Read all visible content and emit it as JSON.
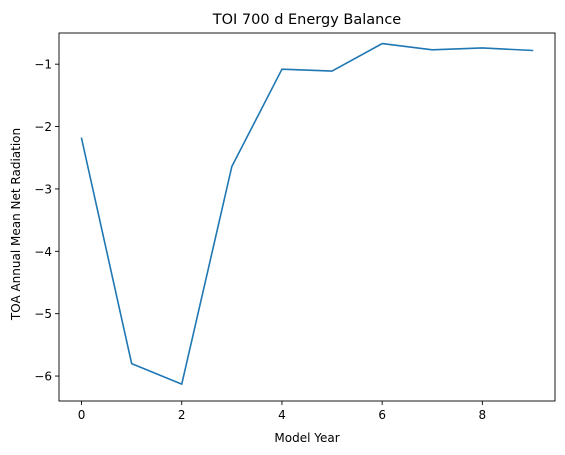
{
  "chart_data": {
    "type": "line",
    "title": "TOI 700 d Energy Balance",
    "xlabel": "Model Year",
    "ylabel": "TOA Annual Mean Net Radiation",
    "xlim": [
      -0.45,
      9.45
    ],
    "ylim": [
      -6.4,
      -0.5
    ],
    "xticks": [
      0,
      2,
      4,
      6,
      8
    ],
    "xtick_labels": [
      "0",
      "2",
      "4",
      "6",
      "8"
    ],
    "yticks": [
      -6,
      -5,
      -4,
      -3,
      -2,
      -1
    ],
    "ytick_labels": [
      "−6",
      "−5",
      "−4",
      "−3",
      "−2",
      "−1"
    ],
    "grid": false,
    "series": [
      {
        "x": [
          0,
          1,
          2,
          3,
          4,
          5,
          6,
          7,
          8,
          9
        ],
        "values": [
          -2.19,
          -5.8,
          -6.13,
          -2.64,
          -1.08,
          -1.11,
          -0.67,
          -0.77,
          -0.74,
          -0.78
        ],
        "color": "#1f77b4"
      }
    ]
  }
}
